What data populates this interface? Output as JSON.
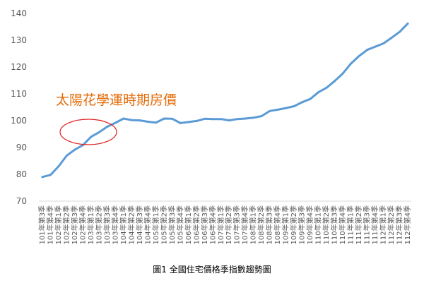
{
  "chart_data": {
    "type": "line",
    "title": "",
    "xlabel": "",
    "ylabel": "",
    "ylim": [
      70,
      140
    ],
    "yticks": [
      70,
      80,
      90,
      100,
      110,
      120,
      130,
      140
    ],
    "grid": false,
    "legend": "none",
    "x": [
      "101年第3季",
      "101年第4季",
      "102年第1季",
      "102年第2季",
      "102年第3季",
      "102年第4季",
      "103年第1季",
      "103年第2季",
      "103年第3季",
      "103年第4季",
      "104年第1季",
      "104年第2季",
      "104年第3季",
      "104年第4季",
      "105年第1季",
      "105年第2季",
      "105年第3季",
      "105年第4季",
      "106年第1季",
      "106年第2季",
      "106年第3季",
      "106年第4季",
      "107年第1季",
      "107年第2季",
      "107年第3季",
      "107年第4季",
      "108年第1季",
      "108年第2季",
      "108年第3季",
      "108年第4季",
      "109年第1季",
      "109年第2季",
      "109年第3季",
      "109年第4季",
      "110年第1季",
      "110年第2季",
      "110年第3季",
      "110年第4季",
      "111年第1季",
      "111年第2季",
      "111年第3季",
      "111年第4季",
      "112年第1季",
      "112年第2季",
      "112年第3季",
      "112年第4季"
    ],
    "series": [
      {
        "color": "#5b9bd5",
        "values": [
          79.0,
          79.8,
          83.0,
          87.0,
          89.2,
          90.9,
          94.0,
          95.7,
          97.8,
          99.2,
          100.8,
          100.2,
          100.1,
          99.6,
          99.3,
          100.8,
          100.7,
          99.1,
          99.5,
          99.9,
          100.7,
          100.6,
          100.6,
          100.1,
          100.6,
          100.8,
          101.1,
          101.7,
          103.6,
          104.1,
          104.7,
          105.4,
          106.9,
          108.1,
          110.6,
          112.3,
          114.8,
          117.6,
          121.3,
          124.1,
          126.4,
          127.6,
          128.8,
          130.9,
          133.1,
          136.2
        ]
      }
    ],
    "annotations": [
      {
        "text": "太陽花學運時期房價",
        "color": "#e36c0a"
      }
    ],
    "highlight_ellipse_color": "#e02020"
  },
  "caption": "圖1 全國住宅價格季指數趨勢圖"
}
